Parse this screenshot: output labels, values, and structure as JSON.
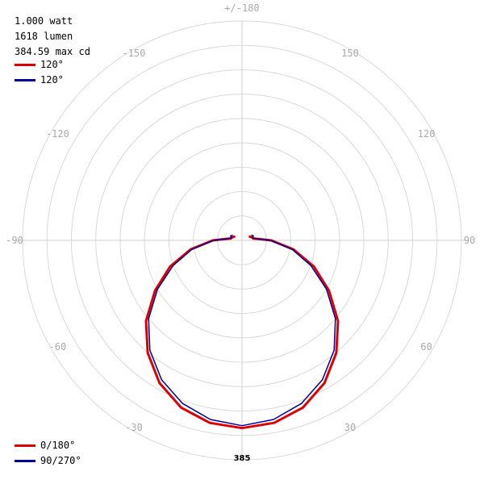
{
  "info": {
    "watt": "1.000 watt",
    "lumen": "1618 lumen",
    "maxcd": "384.59 max cd"
  },
  "legend_top": [
    {
      "label": "120°",
      "color": "#dd0000"
    },
    {
      "label": "120°",
      "color": "#000099"
    }
  ],
  "legend_bottom": [
    {
      "label": "0/180°",
      "color": "#dd0000"
    },
    {
      "label": "90/270°",
      "color": "#000099"
    }
  ],
  "chart_data": {
    "type": "polar",
    "angle_labels": [
      {
        "text": "+/-180",
        "angle": 180
      },
      {
        "text": "-150",
        "angle": -150
      },
      {
        "text": "150",
        "angle": 150
      },
      {
        "text": "-120",
        "angle": -120
      },
      {
        "text": "120",
        "angle": 120
      },
      {
        "text": "-90",
        "angle": -90
      },
      {
        "text": "90",
        "angle": 90
      },
      {
        "text": "-60",
        "angle": -60
      },
      {
        "text": "60",
        "angle": 60
      },
      {
        "text": "-30",
        "angle": -30
      },
      {
        "text": "30",
        "angle": 30
      }
    ],
    "rmax": 385,
    "max_label": "385",
    "series": [
      {
        "name": "0/180°",
        "color": "#dd0000",
        "angles": [
          0,
          10,
          20,
          30,
          40,
          50,
          60,
          70,
          80,
          85,
          90,
          95,
          100,
          105,
          110,
          115,
          120
        ],
        "values": [
          385,
          380,
          365,
          338,
          301,
          257,
          206,
          157,
          107,
          77,
          60,
          34,
          23,
          22,
          20,
          18,
          16
        ]
      },
      {
        "name": "90/270°",
        "color": "#000099",
        "angles": [
          0,
          10,
          20,
          30,
          40,
          50,
          60,
          70,
          80,
          85,
          90,
          95,
          100,
          105,
          110,
          115,
          120
        ],
        "values": [
          380,
          373,
          356,
          330,
          294,
          250,
          200,
          150,
          104,
          74,
          58,
          33,
          25,
          22,
          25,
          24,
          22
        ]
      }
    ]
  }
}
